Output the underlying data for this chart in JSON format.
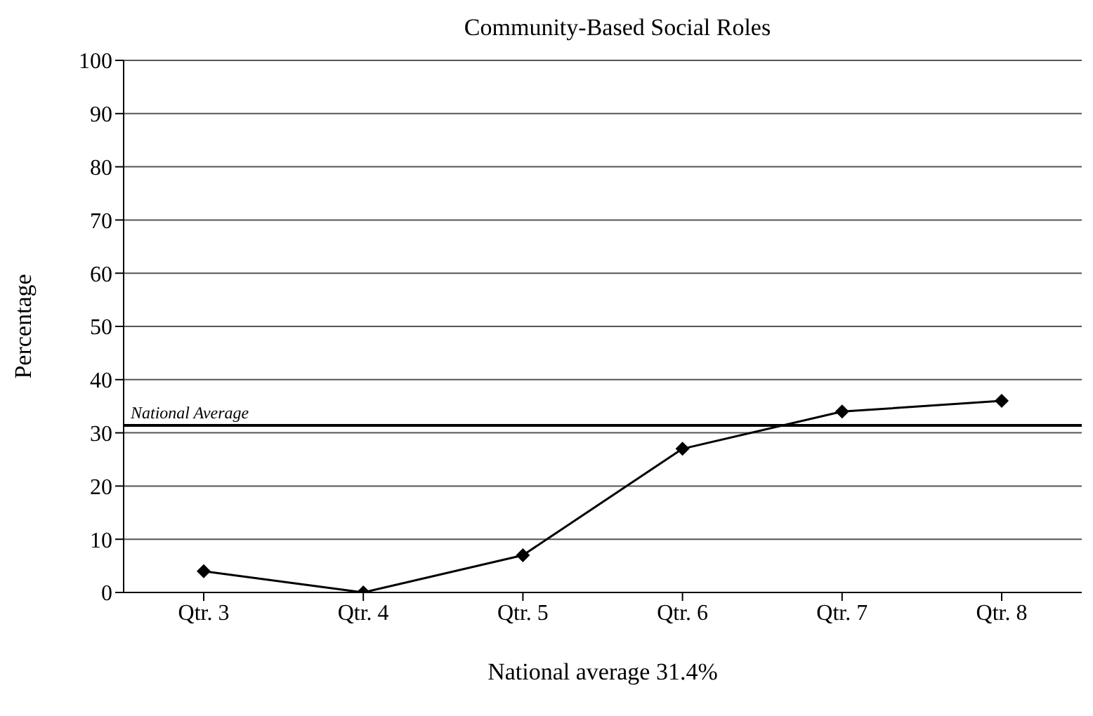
{
  "chart_data": {
    "type": "line",
    "title": "Community-Based Social Roles",
    "xlabel": "National average 31.4%",
    "ylabel": "Percentage",
    "categories": [
      "Qtr. 3",
      "Qtr. 4",
      "Qtr. 5",
      "Qtr. 6",
      "Qtr. 7",
      "Qtr. 8"
    ],
    "series": [
      {
        "color": "#000000",
        "values": [
          4,
          0,
          7,
          27,
          34,
          36
        ]
      }
    ],
    "ylim": [
      0,
      100
    ],
    "yticks": [
      0,
      10,
      20,
      30,
      40,
      50,
      60,
      70,
      80,
      90,
      100
    ],
    "grid": "y",
    "legend": false,
    "marker": "diamond",
    "line_style": "solid",
    "ref_lines": [
      {
        "axis": "y",
        "value": 31.4,
        "label": "National Average",
        "color": "#000000"
      }
    ]
  }
}
